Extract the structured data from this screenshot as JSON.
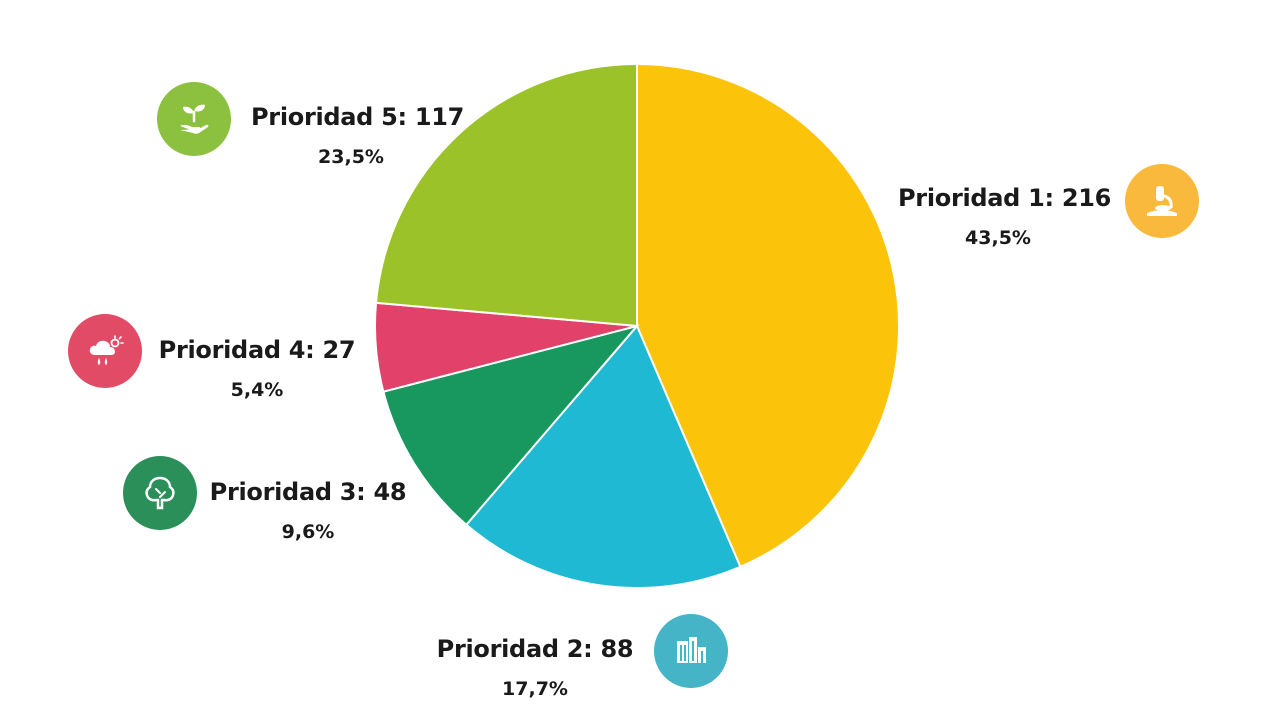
{
  "chart_data": {
    "type": "pie",
    "title": "",
    "slices": [
      {
        "key": "p1",
        "label": "Prioridad 1",
        "value": 216,
        "percent_label": "43,5%",
        "display": "Prioridad 1: 216",
        "color": "#fcc30b",
        "icon": "microscope-icon",
        "icon_color": "#f9b93c"
      },
      {
        "key": "p2",
        "label": "Prioridad 2",
        "value": 88,
        "percent_label": "17,7%",
        "display": "Prioridad 2: 88",
        "color": "#1fb9d3",
        "icon": "buildings-icon",
        "icon_color": "#45b4c6"
      },
      {
        "key": "p3",
        "label": "Prioridad 3",
        "value": 48,
        "percent_label": "9,6%",
        "display": "Prioridad 3: 48",
        "color": "#18985e",
        "icon": "tree-icon",
        "icon_color": "#2b8f59"
      },
      {
        "key": "p4",
        "label": "Prioridad 4",
        "value": 27,
        "percent_label": "5,4%",
        "display": "Prioridad 4: 27",
        "color": "#e2426a",
        "icon": "rain-cloud-icon",
        "icon_color": "#e24b66"
      },
      {
        "key": "p5",
        "label": "Prioridad 5",
        "value": 117,
        "percent_label": "23,5%",
        "display": "Prioridad 5: 117",
        "color": "#9bc228",
        "icon": "sprout-hand-icon",
        "icon_color": "#8cc03f"
      }
    ]
  }
}
